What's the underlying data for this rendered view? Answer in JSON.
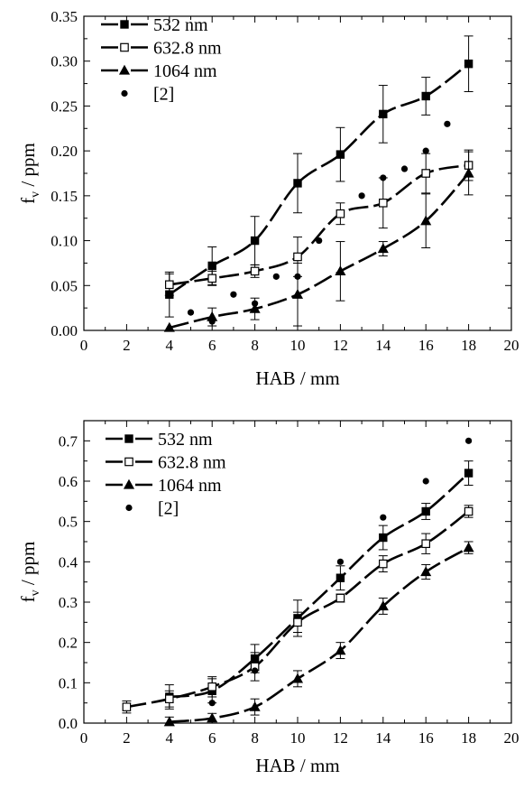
{
  "chart_data": [
    {
      "type": "line",
      "title": "",
      "xlabel": "HAB / mm",
      "ylabel": "f",
      "ylabel_subscript": "v",
      "ylabel_unit": " / ppm",
      "xlim": [
        0,
        20
      ],
      "ylim": [
        0,
        0.35
      ],
      "xticks": [
        0,
        2,
        4,
        6,
        8,
        10,
        12,
        14,
        16,
        18,
        20
      ],
      "yticks": [
        0.0,
        0.05,
        0.1,
        0.15,
        0.2,
        0.25,
        0.3,
        0.35
      ],
      "xtick_labels": [
        "0",
        "2",
        "4",
        "6",
        "8",
        "10",
        "12",
        "14",
        "16",
        "18",
        "20"
      ],
      "ytick_labels": [
        "0.00",
        "0.05",
        "0.10",
        "0.15",
        "0.20",
        "0.25",
        "0.30",
        "0.35"
      ],
      "grid": false,
      "legend_position": "top-left",
      "series": [
        {
          "name": "532 nm",
          "marker": "square-filled",
          "line": "dashed",
          "x": [
            4,
            6,
            8,
            10,
            12,
            14,
            16,
            18
          ],
          "y": [
            0.04,
            0.072,
            0.1,
            0.164,
            0.196,
            0.241,
            0.261,
            0.297
          ],
          "err": [
            0.025,
            0.021,
            0.027,
            0.033,
            0.03,
            0.032,
            0.021,
            0.031
          ]
        },
        {
          "name": "632.8 nm",
          "marker": "square-open",
          "line": "dashed",
          "x": [
            4,
            6,
            8,
            10,
            12,
            14,
            16,
            18
          ],
          "y": [
            0.051,
            0.058,
            0.066,
            0.082,
            0.13,
            0.142,
            0.175,
            0.184
          ],
          "err": [
            0.012,
            0.008,
            0.007,
            0.022,
            0.012,
            0.028,
            0.022,
            0.017
          ]
        },
        {
          "name": "1064 nm",
          "marker": "triangle-filled",
          "line": "dashed",
          "x": [
            4,
            6,
            8,
            10,
            12,
            14,
            16,
            18
          ],
          "y": [
            0.003,
            0.015,
            0.024,
            0.04,
            0.066,
            0.091,
            0.122,
            0.175
          ],
          "err": [
            0.0,
            0.01,
            0.012,
            0.035,
            0.033,
            0.008,
            0.03,
            0.024
          ]
        },
        {
          "name": "[2]",
          "marker": "circle-filled",
          "line": "none",
          "x": [
            5,
            6,
            7,
            8,
            9,
            10,
            11,
            13,
            14,
            15,
            16,
            17
          ],
          "y": [
            0.02,
            0.01,
            0.04,
            0.03,
            0.06,
            0.06,
            0.1,
            0.15,
            0.17,
            0.18,
            0.2,
            0.23
          ]
        }
      ]
    },
    {
      "type": "line",
      "title": "",
      "xlabel": "HAB / mm",
      "ylabel": "f",
      "ylabel_subscript": "v",
      "ylabel_unit": " / ppm",
      "xlim": [
        0,
        20
      ],
      "ylim": [
        0,
        0.75
      ],
      "xticks": [
        0,
        2,
        4,
        6,
        8,
        10,
        12,
        14,
        16,
        18,
        20
      ],
      "yticks": [
        0.0,
        0.1,
        0.2,
        0.3,
        0.4,
        0.5,
        0.6,
        0.7
      ],
      "xtick_labels": [
        "0",
        "2",
        "4",
        "6",
        "8",
        "10",
        "12",
        "14",
        "16",
        "18",
        "20"
      ],
      "ytick_labels": [
        "0.0",
        "0.1",
        "0.2",
        "0.3",
        "0.4",
        "0.5",
        "0.6",
        "0.7"
      ],
      "grid": false,
      "legend_position": "top-left",
      "series": [
        {
          "name": "532 nm",
          "marker": "square-filled",
          "line": "dashed",
          "x": [
            4,
            6,
            8,
            10,
            12,
            14,
            16,
            18
          ],
          "y": [
            0.065,
            0.08,
            0.16,
            0.26,
            0.36,
            0.46,
            0.525,
            0.62
          ],
          "err": [
            0.03,
            0.03,
            0.035,
            0.045,
            0.03,
            0.03,
            0.02,
            0.03
          ]
        },
        {
          "name": "632.8 nm",
          "marker": "square-open",
          "line": "dashed",
          "x": [
            2,
            4,
            6,
            8,
            10,
            12,
            14,
            16,
            18
          ],
          "y": [
            0.04,
            0.06,
            0.09,
            0.14,
            0.25,
            0.31,
            0.395,
            0.445,
            0.525
          ],
          "err": [
            0.015,
            0.02,
            0.025,
            0.035,
            0.025,
            0.01,
            0.02,
            0.025,
            0.015
          ]
        },
        {
          "name": "1064 nm",
          "marker": "triangle-filled",
          "line": "dashed",
          "x": [
            4,
            6,
            8,
            10,
            12,
            14,
            16,
            18
          ],
          "y": [
            0.003,
            0.012,
            0.04,
            0.11,
            0.18,
            0.29,
            0.375,
            0.435
          ],
          "err": [
            0.012,
            0.012,
            0.02,
            0.02,
            0.02,
            0.02,
            0.018,
            0.015
          ]
        },
        {
          "name": "[2]",
          "marker": "circle-filled",
          "line": "none",
          "x": [
            6,
            8,
            12,
            14,
            16,
            18
          ],
          "y": [
            0.05,
            0.13,
            0.4,
            0.51,
            0.6,
            0.7
          ]
        }
      ]
    }
  ]
}
